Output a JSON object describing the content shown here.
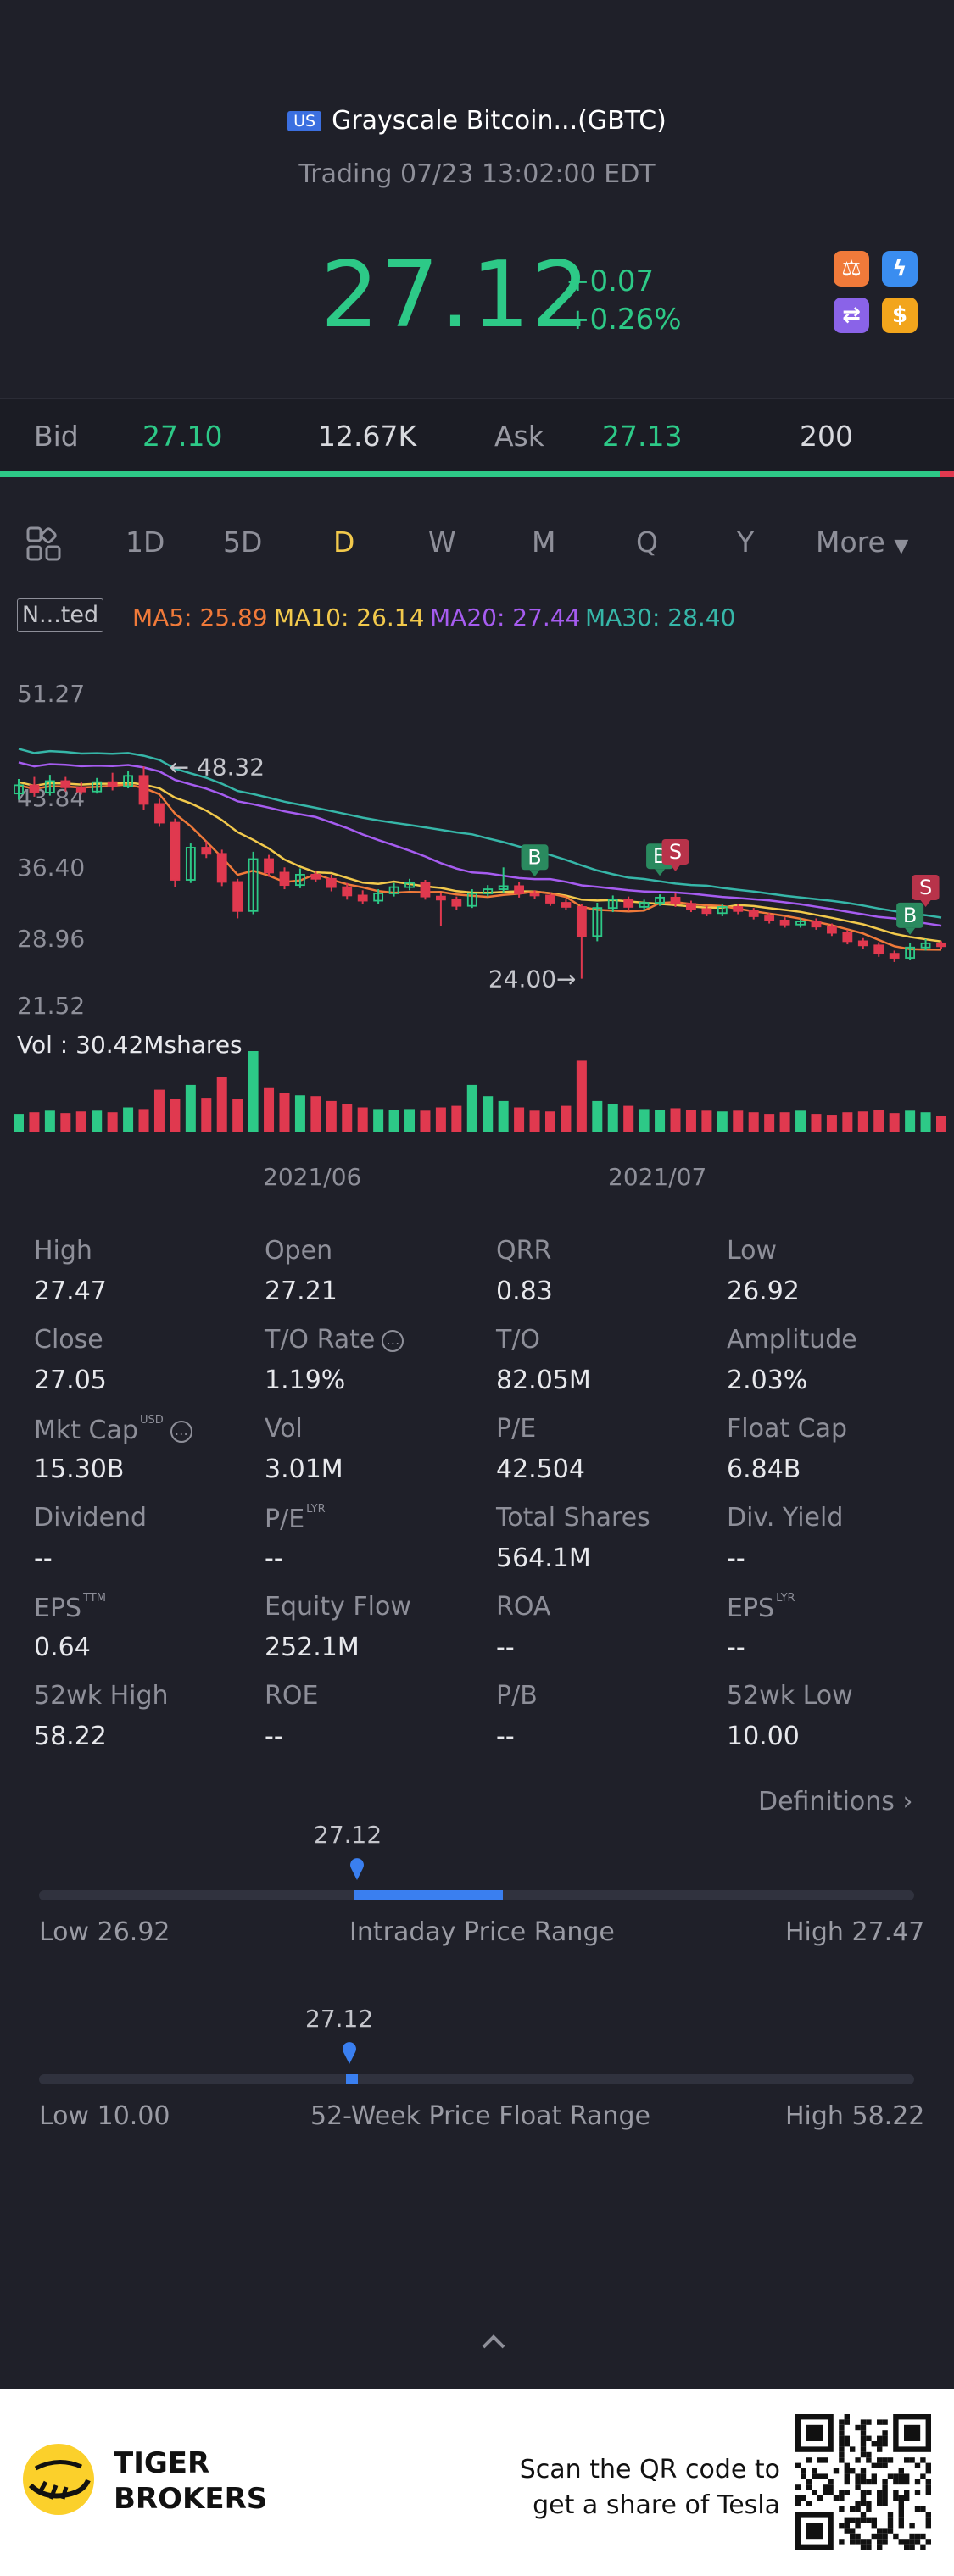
{
  "header": {
    "badge": "US",
    "title": "Grayscale Bitcoin...(GBTC)",
    "subtitle": "Trading 07/23 13:02:00 EDT",
    "price": "27.12",
    "change_abs": "+0.07",
    "change_pct": "+0.26%",
    "quick_icons": [
      "scale-icon",
      "flash-icon",
      "exchange-icon",
      "dollar-icon"
    ],
    "colors": {
      "up": "#2dc987",
      "down": "#e0394f",
      "accent": "#f2c94c",
      "bg": "#1f2029"
    }
  },
  "bidask": {
    "bid_label": "Bid",
    "bid_price": "27.10",
    "bid_size": "12.67K",
    "ask_label": "Ask",
    "ask_price": "27.13",
    "ask_size": "200"
  },
  "tabs": {
    "items": [
      "1D",
      "5D",
      "D",
      "W",
      "M",
      "Q",
      "Y"
    ],
    "active": "D",
    "more_label": "More"
  },
  "ma": {
    "indicator_label": "N...ted",
    "ma5": "MA5: 25.89",
    "ma10": "MA10: 26.14",
    "ma20": "MA20: 27.44",
    "ma30": "MA30: 28.40",
    "colors": {
      "ma5": "#f07a3a",
      "ma10": "#f2c94c",
      "ma20": "#a65cf0",
      "ma30": "#36b6a8"
    }
  },
  "chart_data": {
    "type": "candlestick",
    "y_ticks": [
      "51.27",
      "43.84",
      "36.40",
      "28.96",
      "21.52"
    ],
    "ylim": [
      21.52,
      51.27
    ],
    "x_ticks": [
      "2021/06",
      "2021/07"
    ],
    "high_annotation": "48.32",
    "low_annotation": "24.00",
    "volume_label": "Vol  : 30.42Mshares",
    "markers": [
      {
        "label": "B",
        "type": "buy"
      },
      {
        "label": "B",
        "type": "buy"
      },
      {
        "label": "S",
        "type": "sell"
      },
      {
        "label": "S",
        "type": "sell"
      },
      {
        "label": "B",
        "type": "buy"
      }
    ],
    "candles": [
      {
        "o": 41.8,
        "c": 42.6,
        "h": 43.2,
        "l": 41.2
      },
      {
        "o": 42.6,
        "c": 41.9,
        "h": 43.4,
        "l": 41.5
      },
      {
        "o": 41.9,
        "c": 43.0,
        "h": 43.6,
        "l": 41.6
      },
      {
        "o": 43.0,
        "c": 42.4,
        "h": 43.4,
        "l": 42.0
      },
      {
        "o": 42.4,
        "c": 42.0,
        "h": 42.9,
        "l": 41.7
      },
      {
        "o": 42.0,
        "c": 42.9,
        "h": 43.3,
        "l": 41.8
      },
      {
        "o": 42.9,
        "c": 42.5,
        "h": 43.8,
        "l": 42.1
      },
      {
        "o": 42.5,
        "c": 43.5,
        "h": 44.0,
        "l": 42.3
      },
      {
        "o": 43.5,
        "c": 40.8,
        "h": 44.4,
        "l": 40.2
      },
      {
        "o": 40.8,
        "c": 39.0,
        "h": 41.3,
        "l": 38.6
      },
      {
        "o": 39.0,
        "c": 33.5,
        "h": 39.4,
        "l": 32.8
      },
      {
        "o": 33.5,
        "c": 36.6,
        "h": 37.0,
        "l": 33.2
      },
      {
        "o": 36.6,
        "c": 36.0,
        "h": 37.2,
        "l": 35.6
      },
      {
        "o": 36.0,
        "c": 33.3,
        "h": 36.4,
        "l": 32.9
      },
      {
        "o": 33.3,
        "c": 30.5,
        "h": 33.6,
        "l": 29.8
      },
      {
        "o": 30.5,
        "c": 35.5,
        "h": 36.2,
        "l": 30.2
      },
      {
        "o": 35.5,
        "c": 34.2,
        "h": 35.9,
        "l": 33.8
      },
      {
        "o": 34.2,
        "c": 33.0,
        "h": 34.7,
        "l": 32.6
      },
      {
        "o": 33.0,
        "c": 34.0,
        "h": 34.6,
        "l": 32.7
      },
      {
        "o": 34.0,
        "c": 33.6,
        "h": 34.3,
        "l": 33.3
      },
      {
        "o": 33.6,
        "c": 32.8,
        "h": 34.0,
        "l": 32.4
      },
      {
        "o": 32.8,
        "c": 32.0,
        "h": 33.2,
        "l": 31.6
      },
      {
        "o": 32.0,
        "c": 31.5,
        "h": 32.5,
        "l": 31.2
      },
      {
        "o": 31.5,
        "c": 32.2,
        "h": 32.6,
        "l": 31.2
      },
      {
        "o": 32.2,
        "c": 32.8,
        "h": 33.2,
        "l": 31.9
      },
      {
        "o": 32.8,
        "c": 33.2,
        "h": 33.6,
        "l": 32.5
      },
      {
        "o": 33.2,
        "c": 31.9,
        "h": 33.5,
        "l": 31.6
      },
      {
        "o": 31.9,
        "c": 31.6,
        "h": 32.2,
        "l": 29.1
      },
      {
        "o": 31.6,
        "c": 31.0,
        "h": 31.9,
        "l": 30.6
      },
      {
        "o": 31.0,
        "c": 32.2,
        "h": 32.6,
        "l": 30.8
      },
      {
        "o": 32.2,
        "c": 32.6,
        "h": 33.0,
        "l": 31.9
      },
      {
        "o": 32.6,
        "c": 32.9,
        "h": 34.7,
        "l": 32.3
      },
      {
        "o": 32.9,
        "c": 32.2,
        "h": 33.3,
        "l": 31.8
      },
      {
        "o": 32.2,
        "c": 32.0,
        "h": 32.5,
        "l": 31.7
      },
      {
        "o": 32.0,
        "c": 31.3,
        "h": 32.3,
        "l": 31.0
      },
      {
        "o": 31.3,
        "c": 30.9,
        "h": 31.6,
        "l": 30.6
      },
      {
        "o": 30.9,
        "c": 28.1,
        "h": 31.2,
        "l": 24.0
      },
      {
        "o": 28.1,
        "c": 30.8,
        "h": 31.3,
        "l": 27.6
      },
      {
        "o": 30.8,
        "c": 31.6,
        "h": 32.0,
        "l": 30.4
      },
      {
        "o": 31.6,
        "c": 30.9,
        "h": 31.9,
        "l": 30.5
      },
      {
        "o": 30.9,
        "c": 31.3,
        "h": 31.6,
        "l": 30.6
      },
      {
        "o": 31.3,
        "c": 31.8,
        "h": 32.1,
        "l": 31.0
      },
      {
        "o": 31.8,
        "c": 31.2,
        "h": 32.2,
        "l": 30.9
      },
      {
        "o": 31.2,
        "c": 30.7,
        "h": 31.5,
        "l": 30.4
      },
      {
        "o": 30.7,
        "c": 30.3,
        "h": 31.0,
        "l": 30.0
      },
      {
        "o": 30.3,
        "c": 30.9,
        "h": 31.2,
        "l": 30.0
      },
      {
        "o": 30.9,
        "c": 30.5,
        "h": 31.2,
        "l": 30.2
      },
      {
        "o": 30.5,
        "c": 30.0,
        "h": 30.8,
        "l": 29.7
      },
      {
        "o": 30.0,
        "c": 29.6,
        "h": 30.3,
        "l": 29.3
      },
      {
        "o": 29.6,
        "c": 29.2,
        "h": 29.9,
        "l": 28.9
      },
      {
        "o": 29.2,
        "c": 29.5,
        "h": 29.8,
        "l": 28.9
      },
      {
        "o": 29.5,
        "c": 29.0,
        "h": 29.8,
        "l": 28.7
      },
      {
        "o": 29.0,
        "c": 28.4,
        "h": 29.3,
        "l": 28.1
      },
      {
        "o": 28.4,
        "c": 27.6,
        "h": 28.7,
        "l": 27.3
      },
      {
        "o": 27.6,
        "c": 27.2,
        "h": 27.9,
        "l": 26.9
      },
      {
        "o": 27.2,
        "c": 26.4,
        "h": 27.5,
        "l": 26.1
      },
      {
        "o": 26.4,
        "c": 26.0,
        "h": 26.7,
        "l": 25.6
      },
      {
        "o": 26.0,
        "c": 27.0,
        "h": 27.4,
        "l": 25.8
      },
      {
        "o": 27.0,
        "c": 27.4,
        "h": 27.8,
        "l": 26.7
      },
      {
        "o": 27.4,
        "c": 27.12,
        "h": 27.6,
        "l": 26.9
      }
    ],
    "volume": [
      22,
      24,
      26,
      23,
      25,
      26,
      24,
      30,
      28,
      52,
      40,
      58,
      42,
      68,
      40,
      100,
      55,
      48,
      45,
      44,
      38,
      34,
      30,
      28,
      27,
      28,
      26,
      30,
      32,
      58,
      44,
      38,
      30,
      26,
      25,
      32,
      88,
      38,
      34,
      32,
      28,
      27,
      29,
      27,
      26,
      25,
      26,
      24,
      22,
      24,
      26,
      22,
      21,
      24,
      25,
      27,
      23,
      26,
      24,
      20
    ]
  },
  "stats": {
    "rows": [
      [
        {
          "label": "High",
          "value": "27.47"
        },
        {
          "label": "Open",
          "value": "27.21"
        },
        {
          "label": "QRR",
          "value": "0.83"
        },
        {
          "label": "Low",
          "value": "26.92"
        }
      ],
      [
        {
          "label": "Close",
          "value": "27.05"
        },
        {
          "label": "T/O Rate",
          "value": "1.19%"
        },
        {
          "label": "T/O",
          "value": "82.05M"
        },
        {
          "label": "Amplitude",
          "value": "2.03%"
        }
      ],
      [
        {
          "label": "Mkt Cap",
          "value": "15.30B"
        },
        {
          "label": "Vol",
          "value": "3.01M"
        },
        {
          "label": "P/E",
          "value": "42.504"
        },
        {
          "label": "Float Cap",
          "value": "6.84B"
        }
      ],
      [
        {
          "label": "Dividend",
          "value": "--"
        },
        {
          "label": "P/E",
          "value": "--"
        },
        {
          "label": "Total Shares",
          "value": "564.1M"
        },
        {
          "label": "Div. Yield",
          "value": "--"
        }
      ],
      [
        {
          "label": "EPS",
          "value": "0.64"
        },
        {
          "label": "Equity Flow",
          "value": "252.1M"
        },
        {
          "label": "ROA",
          "value": "--"
        },
        {
          "label": "EPS",
          "value": "--"
        }
      ],
      [
        {
          "label": "52wk High",
          "value": "58.22"
        },
        {
          "label": "ROE",
          "value": "--"
        },
        {
          "label": "P/B",
          "value": "--"
        },
        {
          "label": "52wk Low",
          "value": "10.00"
        }
      ]
    ],
    "sup_usd": "USD",
    "sup_ttm": "TTM",
    "sup_lyr": "LYR",
    "definitions_label": "Definitions"
  },
  "ranges": {
    "intraday": {
      "current": "27.12",
      "low_label": "Low 26.92",
      "high_label": "High 27.47",
      "title": "Intraday Price Range",
      "low": 26.92,
      "high": 27.47,
      "value": 27.12
    },
    "week52": {
      "current": "27.12",
      "low_label": "Low 10.00",
      "high_label": "High 58.22",
      "title": "52-Week Price Float Range",
      "low": 10.0,
      "high": 58.22,
      "value": 27.12
    }
  },
  "footer": {
    "brand_line1": "TIGER",
    "brand_line2": "BROKERS",
    "qr_text_line1": "Scan the QR code to",
    "qr_text_line2": "get a share of Tesla"
  }
}
